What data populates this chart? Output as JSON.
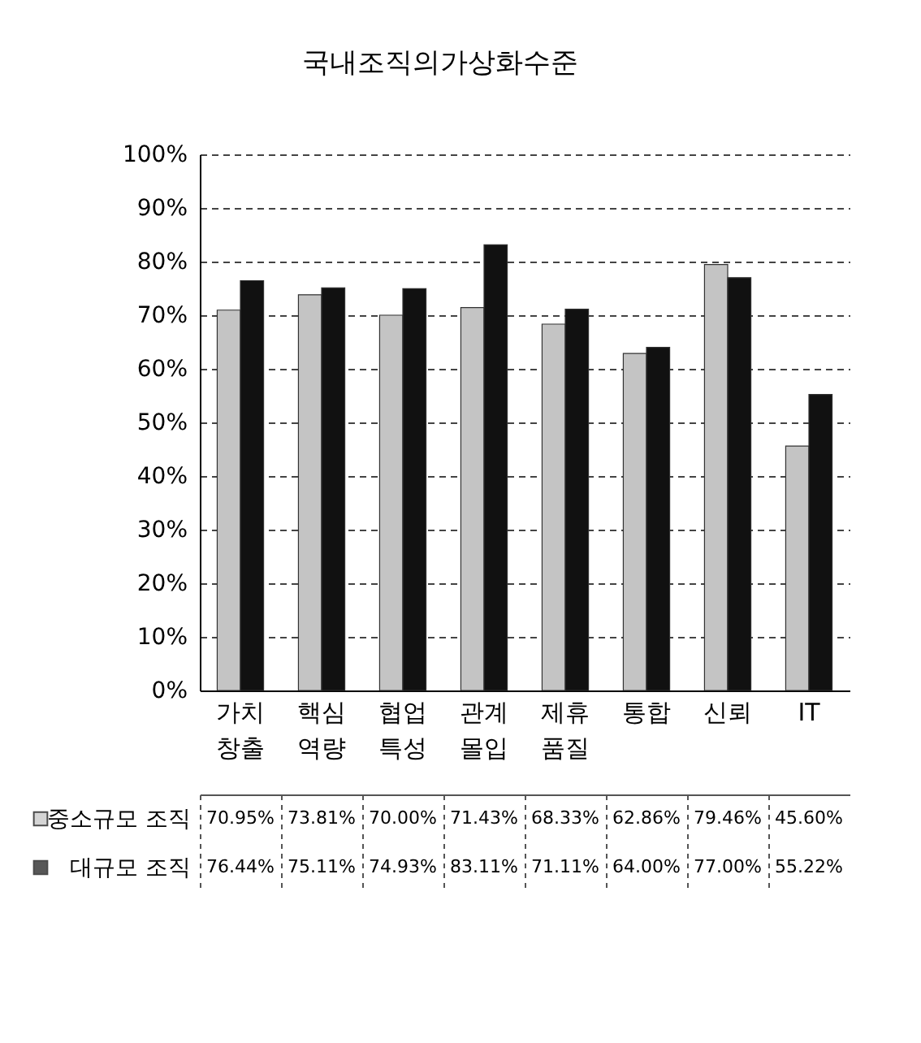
{
  "chart_data": {
    "type": "bar",
    "title": "국내조직의가상화수준",
    "categories": [
      "가치 창출",
      "핵심 역량",
      "협업 특성",
      "관계 몰입",
      "제휴 품질",
      "통합",
      "신뢰",
      "IT"
    ],
    "series": [
      {
        "name": "중소규모 조직",
        "color": "#c4c4c4",
        "values": [
          70.95,
          73.81,
          70.0,
          71.43,
          68.33,
          62.86,
          79.46,
          45.6
        ],
        "value_labels": [
          "70.95%",
          "73.81%",
          "70.00%",
          "71.43%",
          "68.33%",
          "62.86%",
          "79.46%",
          "45.60%"
        ]
      },
      {
        "name": "대규모 조직",
        "color": "#111111",
        "values": [
          76.44,
          75.11,
          74.93,
          83.11,
          71.11,
          64.0,
          77.0,
          55.22
        ],
        "value_labels": [
          "76.44%",
          "75.11%",
          "74.93%",
          "83.11%",
          "71.11%",
          "64.00%",
          "77.00%",
          "55.22%"
        ]
      }
    ],
    "ylim": [
      0,
      100
    ],
    "yticks": [
      {
        "value": 0,
        "label": "0%"
      },
      {
        "value": 10,
        "label": "10%"
      },
      {
        "value": 20,
        "label": "20%"
      },
      {
        "value": 30,
        "label": "30%"
      },
      {
        "value": 40,
        "label": "40%"
      },
      {
        "value": 50,
        "label": "50%"
      },
      {
        "value": 60,
        "label": "60%"
      },
      {
        "value": 70,
        "label": "70%"
      },
      {
        "value": 80,
        "label": "80%"
      },
      {
        "value": 90,
        "label": "90%"
      },
      {
        "value": 100,
        "label": "100%"
      }
    ],
    "grid": "y",
    "legend": "bottom"
  }
}
